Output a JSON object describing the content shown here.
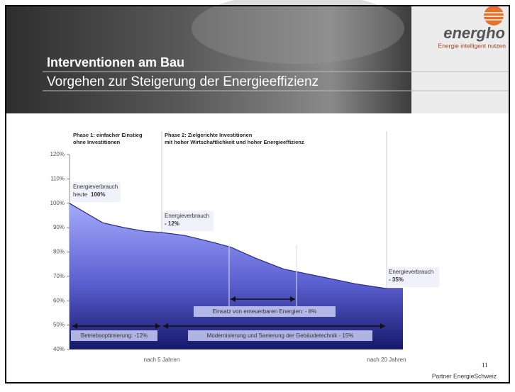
{
  "header": {
    "title": "Interventionen am Bau",
    "subtitle": "Vorgehen zur Steigerung der Energieeffizienz",
    "logo": "energho",
    "tagline": "Energie intelligent nutzen"
  },
  "chart_data": {
    "type": "area",
    "phases": [
      {
        "line1": "Phase 1: einfacher Einstieg",
        "line2": "ohne Investitionen"
      },
      {
        "line1": "Phase 2: Zielgerichte Investitionen",
        "line2": "mit hoher Wirtschaftlichkeit und hoher Energieeffizienz"
      }
    ],
    "x": [
      -1.15,
      1.07,
      2.49,
      3.91,
      5,
      6.51,
      8.41,
      9.59,
      11.25,
      13.14,
      15.51,
      17.87,
      20,
      21.09
    ],
    "values": [
      100,
      92,
      90,
      88.5,
      88,
      86.8,
      84,
      82,
      77.5,
      73,
      70,
      67,
      65,
      65
    ],
    "color": "#8f96f0",
    "xlim": [
      -1.15,
      21.09
    ],
    "xticks": [
      {
        "value": 5,
        "label": "nach 5 Jahren"
      },
      {
        "value": 20,
        "label": "nach 20 Jahren"
      }
    ],
    "ylim": [
      40,
      120
    ],
    "yticks": [
      {
        "value": 40,
        "label": "40%"
      },
      {
        "value": 50,
        "label": "50%"
      },
      {
        "value": 60,
        "label": "60%"
      },
      {
        "value": 70,
        "label": "70%"
      },
      {
        "value": 80,
        "label": "80%"
      },
      {
        "value": 90,
        "label": "90%"
      },
      {
        "value": 100,
        "label": "100%"
      },
      {
        "value": 110,
        "label": "110%"
      },
      {
        "value": 120,
        "label": "120%"
      }
    ],
    "annotations": [
      {
        "line1": "Energieverbrauch",
        "line2": "heute",
        "bold": "100%"
      },
      {
        "line1": "Energieverbrauch",
        "bold": "- 12%"
      },
      {
        "line1": "Energieverbrauch",
        "bold": "- 35%"
      }
    ],
    "measures": [
      "Betriebsoptimierung: -12%",
      "Modernisierung und Sanierung der Gebäudetechnik - 15%",
      "Einsatz von erneuerbaren Energien: - 8%"
    ]
  },
  "footer": {
    "page": "11",
    "partner": "Partner EnergieSchweiz"
  }
}
